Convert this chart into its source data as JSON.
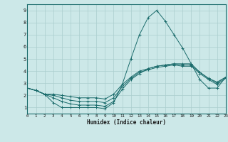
{
  "xlabel": "Humidex (Indice chaleur)",
  "xlim": [
    0,
    23
  ],
  "ylim": [
    0.5,
    9.5
  ],
  "xticks": [
    0,
    1,
    2,
    3,
    4,
    5,
    6,
    7,
    8,
    9,
    10,
    11,
    12,
    13,
    14,
    15,
    16,
    17,
    18,
    19,
    20,
    21,
    22,
    23
  ],
  "yticks": [
    1,
    2,
    3,
    4,
    5,
    6,
    7,
    8,
    9
  ],
  "bg_color": "#cce8e8",
  "grid_color": "#aacece",
  "line_color": "#1a6b6b",
  "lines": [
    [
      2.6,
      2.4,
      2.1,
      1.4,
      1.0,
      1.0,
      1.0,
      1.0,
      1.0,
      0.9,
      1.4,
      2.9,
      5.0,
      7.0,
      8.4,
      9.0,
      8.1,
      7.0,
      5.9,
      4.6,
      3.3,
      2.6,
      2.6,
      3.5
    ],
    [
      2.6,
      2.4,
      2.1,
      1.8,
      1.5,
      1.3,
      1.2,
      1.2,
      1.2,
      1.1,
      1.5,
      2.5,
      3.3,
      3.8,
      4.2,
      4.4,
      4.5,
      4.6,
      4.6,
      4.6,
      3.9,
      3.4,
      3.0,
      3.5
    ],
    [
      2.6,
      2.4,
      2.1,
      2.0,
      1.8,
      1.6,
      1.5,
      1.5,
      1.5,
      1.4,
      1.8,
      2.7,
      3.4,
      3.9,
      4.1,
      4.3,
      4.4,
      4.5,
      4.4,
      4.4,
      3.8,
      3.3,
      2.9,
      3.4
    ],
    [
      2.6,
      2.4,
      2.1,
      2.1,
      2.0,
      1.9,
      1.8,
      1.8,
      1.8,
      1.7,
      2.1,
      2.9,
      3.5,
      4.0,
      4.2,
      4.4,
      4.5,
      4.6,
      4.5,
      4.5,
      3.9,
      3.4,
      3.1,
      3.5
    ]
  ]
}
